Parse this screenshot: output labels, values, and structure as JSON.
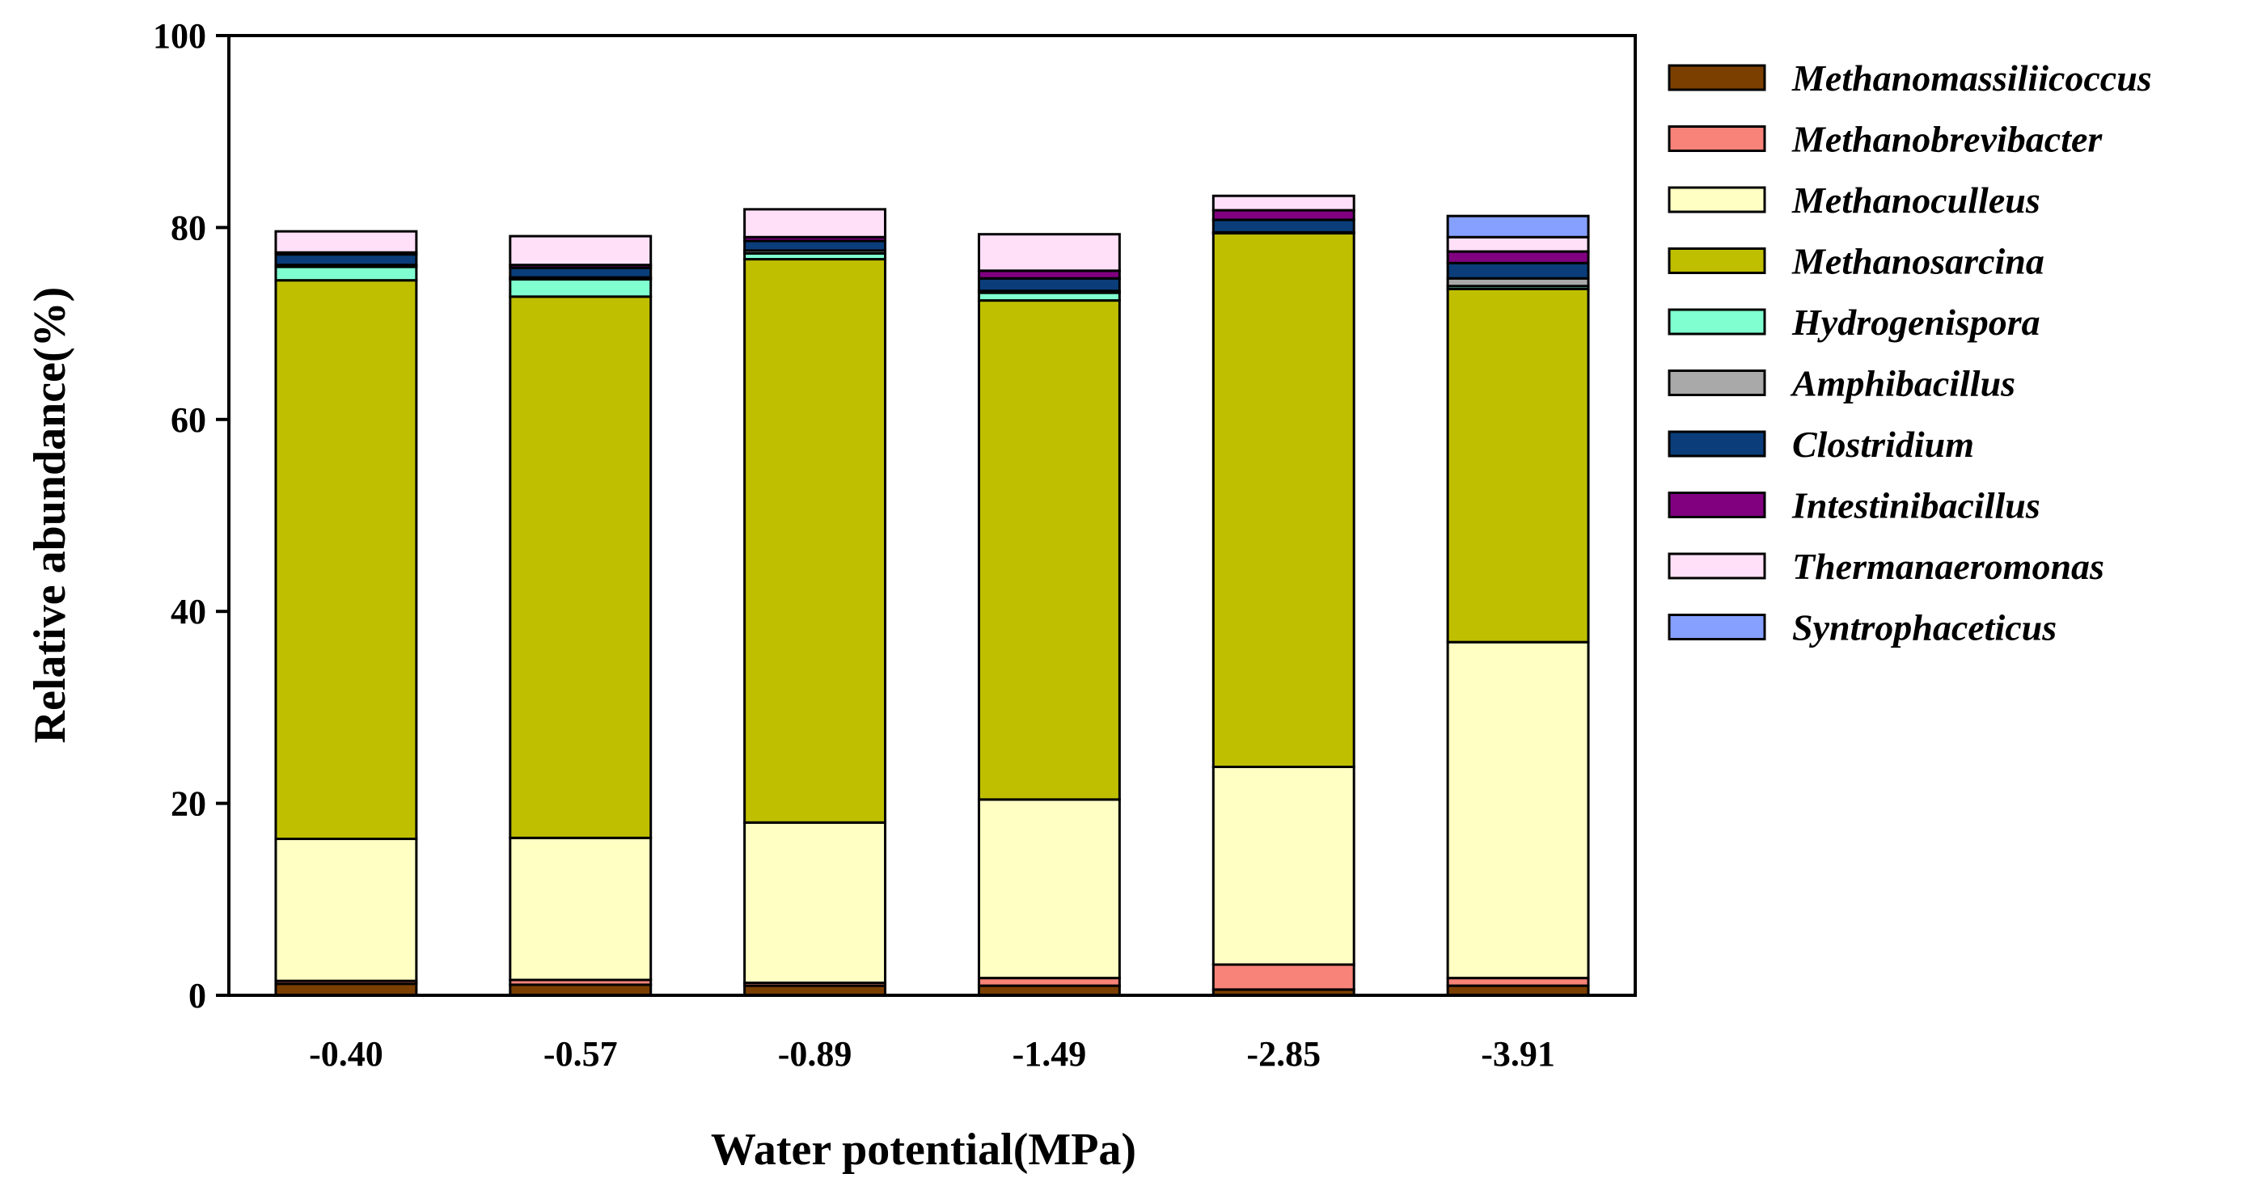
{
  "chart_data": {
    "type": "bar",
    "stacked": true,
    "title": "",
    "xlabel": "Water potential(MPa)",
    "ylabel": "Relative abundance(%)",
    "ylim": [
      0,
      100
    ],
    "yticks": [
      "0",
      "20",
      "40",
      "60",
      "80",
      "100"
    ],
    "categories": [
      "-0.40",
      "-0.57",
      "-0.89",
      "-1.49",
      "-2.85",
      "-3.91"
    ],
    "legend_position": "right",
    "series": [
      {
        "name": "Methanomassiliicoccus",
        "color": "#7B3F00",
        "values": [
          1.2,
          1.1,
          1.0,
          1.0,
          0.6,
          1.0
        ]
      },
      {
        "name": "Methanobrevibacter",
        "color": "#F88379",
        "values": [
          0.3,
          0.5,
          0.3,
          0.8,
          2.6,
          0.8
        ]
      },
      {
        "name": "Methanoculleus",
        "color": "#FFFFC4",
        "values": [
          14.8,
          14.8,
          16.7,
          18.6,
          20.6,
          35.0
        ]
      },
      {
        "name": "Methanosarcina",
        "color": "#BFBF00",
        "values": [
          58.2,
          56.4,
          58.7,
          52.0,
          55.6,
          36.8
        ]
      },
      {
        "name": "Hydrogenispora",
        "color": "#80FFD0",
        "values": [
          1.4,
          1.8,
          0.6,
          0.8,
          0.0,
          0.3
        ]
      },
      {
        "name": "Amphibacillus",
        "color": "#A9A9A9",
        "values": [
          0.2,
          0.2,
          0.3,
          0.2,
          0.1,
          0.8
        ]
      },
      {
        "name": "Clostridium",
        "color": "#0A3D7A",
        "values": [
          1.1,
          1.0,
          1.0,
          1.3,
          1.3,
          1.6
        ]
      },
      {
        "name": "Intestinibacillus",
        "color": "#800080",
        "values": [
          0.2,
          0.3,
          0.4,
          0.8,
          1.0,
          1.2
        ]
      },
      {
        "name": "Thermanaeromonas",
        "color": "#FFE0F8",
        "values": [
          2.2,
          3.0,
          2.9,
          3.8,
          1.5,
          1.5
        ]
      },
      {
        "name": "Syntrophaceticus",
        "color": "#85A0FF",
        "values": [
          0.0,
          0.0,
          0.0,
          0.0,
          0.0,
          2.2
        ]
      }
    ]
  }
}
